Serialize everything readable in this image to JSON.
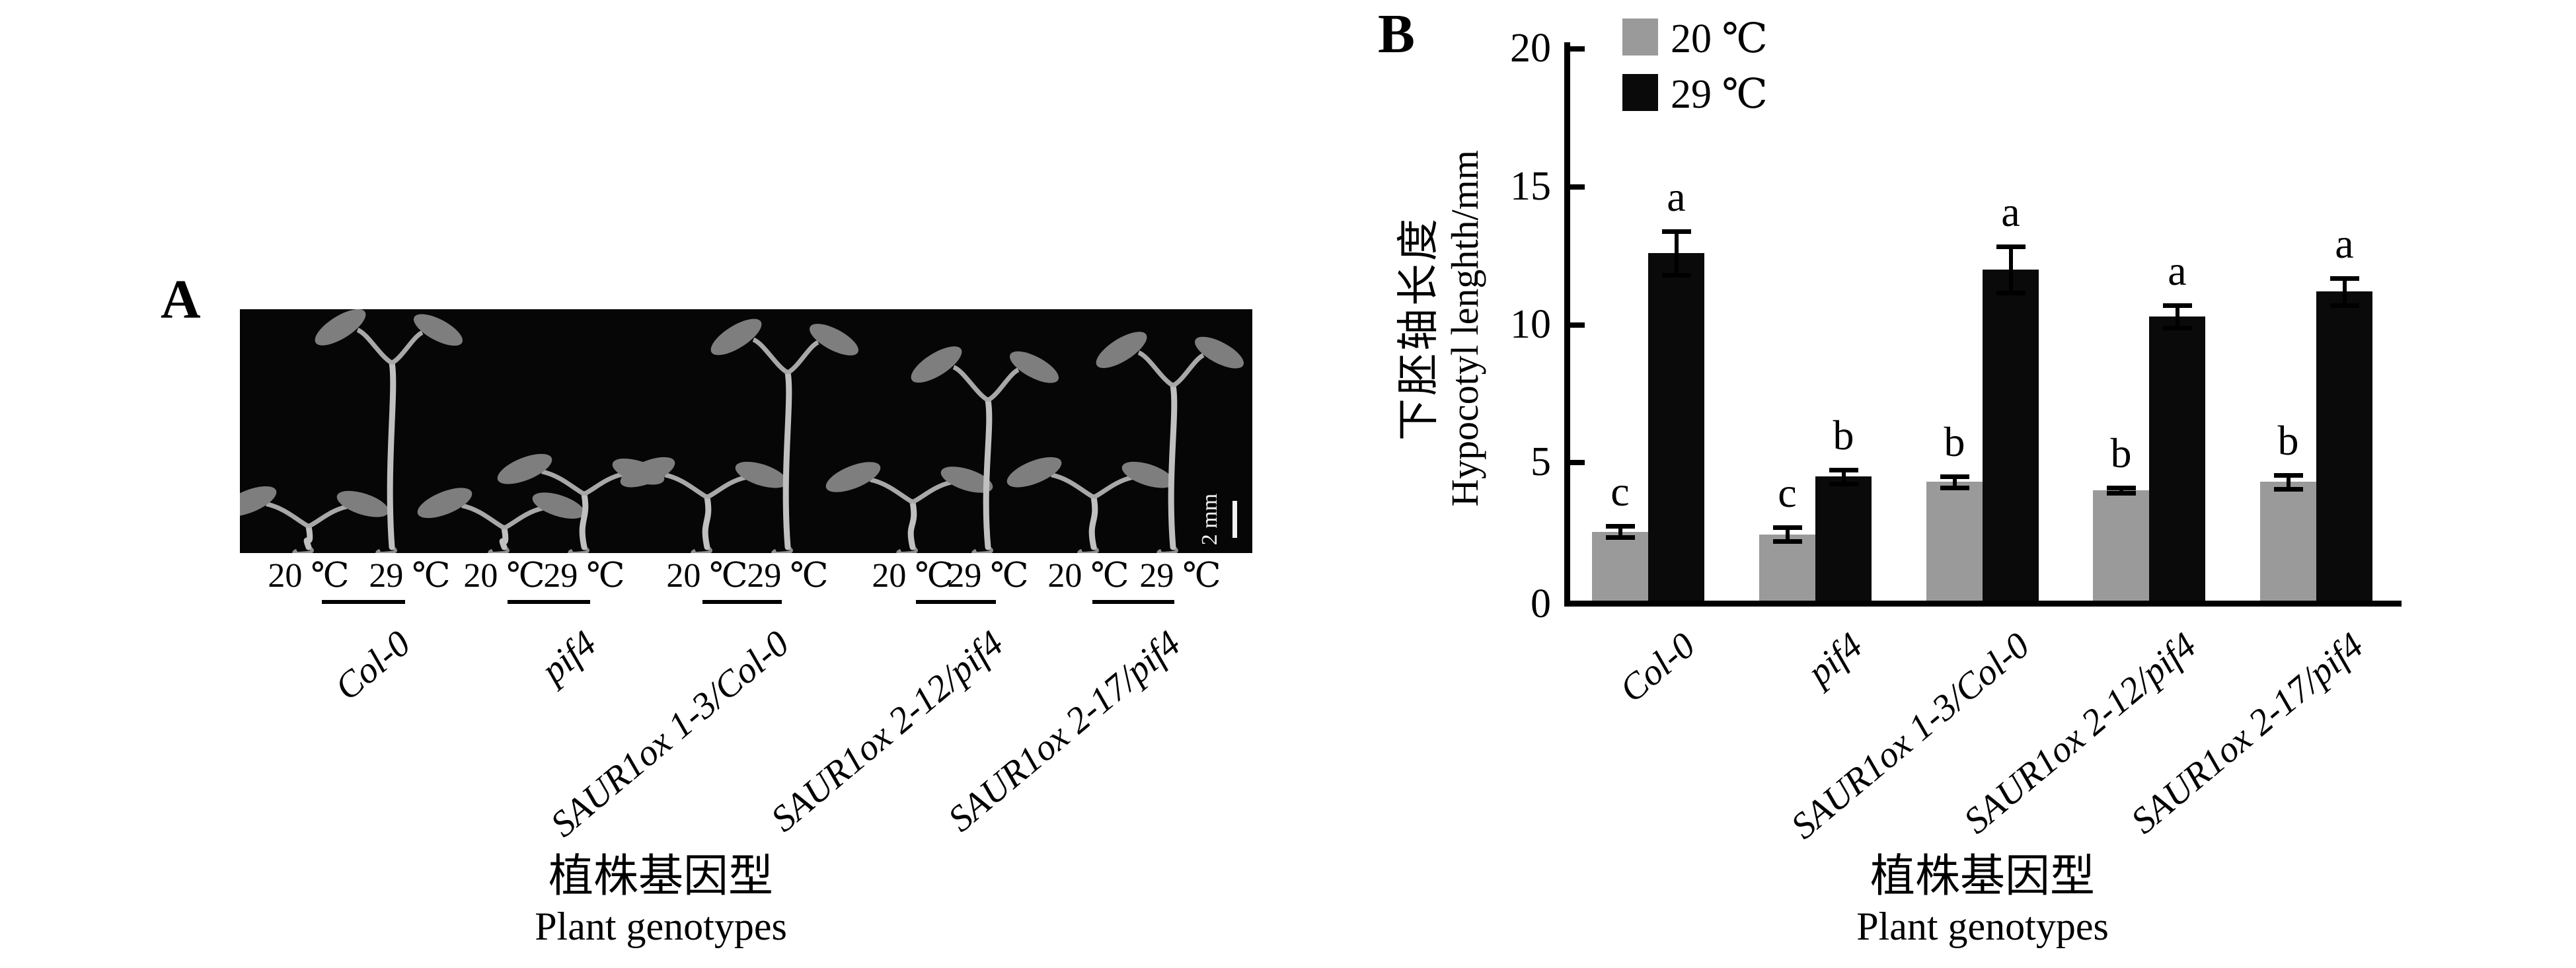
{
  "figure": {
    "panel_a": {
      "label": "A",
      "temp_labels": [
        "20 ℃",
        "29 ℃"
      ],
      "genotypes": [
        "Col-0",
        "pif4",
        "SAUR1ox 1-3/Col-0",
        "SAUR1ox 2-12/pif4",
        "SAUR1ox 2-17/pif4"
      ],
      "scale_bar_label": "2 mm",
      "xlabel_zh": "植株基因型",
      "xlabel_en": "Plant genotypes"
    },
    "panel_b": {
      "label": "B",
      "ylabel_zh": "下胚轴长度",
      "ylabel_en": "Hypocotyl lenghth/mm",
      "xlabel_zh": "植株基因型",
      "xlabel_en": "Plant genotypes",
      "yticks": [
        0,
        5,
        10,
        15,
        20
      ]
    }
  },
  "chart_data": {
    "type": "bar",
    "categories": [
      "Col-0",
      "pif4",
      "SAUR1ox 1-3/Col-0",
      "SAUR1ox 2-12/pif4",
      "SAUR1ox 2-17/pif4"
    ],
    "series": [
      {
        "name": "20 ℃",
        "color": "#9a9a9a",
        "values": [
          2.5,
          2.4,
          4.3,
          4.0,
          4.3
        ],
        "errors": [
          0.2,
          0.25,
          0.2,
          0.1,
          0.25
        ],
        "letters": [
          "c",
          "c",
          "b",
          "b",
          "b"
        ]
      },
      {
        "name": "29 ℃",
        "color": "#0a0a0a",
        "values": [
          12.6,
          4.5,
          12.0,
          10.3,
          11.2
        ],
        "errors": [
          0.8,
          0.25,
          0.85,
          0.4,
          0.5
        ],
        "letters": [
          "a",
          "b",
          "a",
          "a",
          "a"
        ]
      }
    ],
    "title": "",
    "xlabel": "植株基因型 Plant genotypes",
    "ylabel": "下胚轴长度 Hypocotyl lenghth/mm",
    "ylim": [
      0,
      20
    ],
    "grid": false,
    "legend_position": "top-left-inside"
  }
}
